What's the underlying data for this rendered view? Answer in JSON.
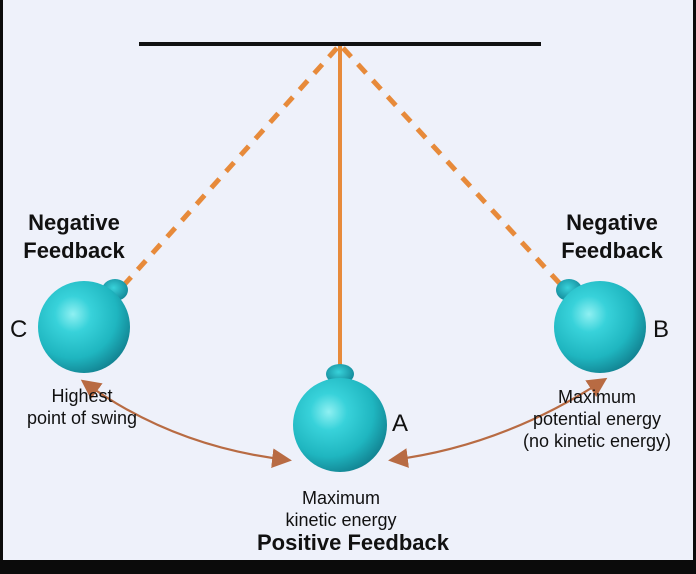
{
  "diagram": {
    "left_feedback": {
      "line1": "Negative",
      "line2": "Feedback"
    },
    "right_feedback": {
      "line1": "Negative",
      "line2": "Feedback"
    },
    "left_point": {
      "letter": "C",
      "line1": "Highest",
      "line2": "point of swing"
    },
    "right_point": {
      "letter": "B",
      "line1": "Maximum",
      "line2": "potential energy",
      "line3": "(no kinetic energy)"
    },
    "center_point": {
      "letter": "A",
      "line1": "Maximum",
      "line2": "kinetic energy",
      "feedback": "Positive Feedback"
    },
    "colors": {
      "background": "#eef1fa",
      "frame": "#0b0b0b",
      "string": "#e78a3a",
      "bob": "#1fb6c0",
      "bob_dark": "#0d7d8f",
      "bar": "#111111"
    }
  }
}
